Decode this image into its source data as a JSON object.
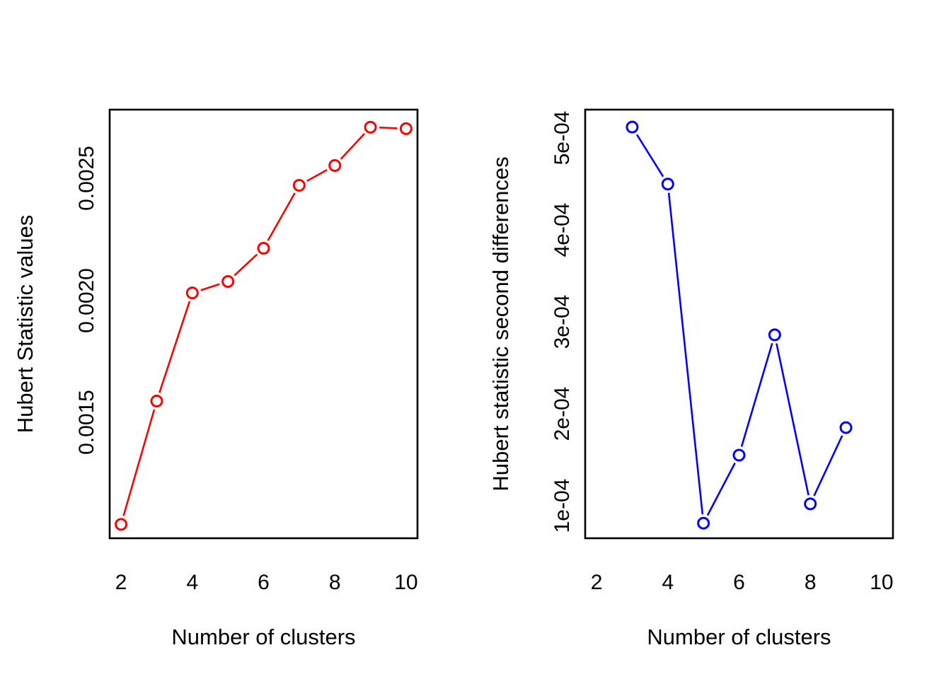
{
  "figure": {
    "background": "#ffffff",
    "text_color": "#000000"
  },
  "chart_data": [
    {
      "type": "line",
      "id": "hubert-statistic-values",
      "marker": "open-circle",
      "line_style": "segments-with-gaps",
      "color": "#ff0000",
      "xlabel": "Number of clusters",
      "ylabel": "Hubert Statistic values",
      "x": [
        2,
        3,
        4,
        5,
        6,
        7,
        8,
        9,
        10
      ],
      "y": [
        0.001082,
        0.001587,
        0.00203,
        0.002077,
        0.002213,
        0.002471,
        0.002552,
        0.002709,
        0.002703
      ],
      "xlim": [
        1.68,
        10.32
      ],
      "ylim": [
        0.001025,
        0.002781
      ],
      "xticks": [
        2,
        4,
        6,
        8,
        10
      ],
      "xtick_labels": [
        "2",
        "4",
        "6",
        "8",
        "10"
      ],
      "yticks": [
        0.0015,
        0.002,
        0.0025
      ],
      "ytick_labels": [
        "0.0015",
        "0.0020",
        "0.0025"
      ],
      "grid": false,
      "legend": null
    },
    {
      "type": "line",
      "id": "hubert-statistic-second-differences",
      "marker": "open-circle",
      "line_style": "segments-with-gaps",
      "color": "#0000ff",
      "xlabel": "Number of clusters",
      "ylabel": "Hubert statistic second differences",
      "x": [
        3,
        4,
        5,
        6,
        7,
        8,
        9
      ],
      "y": [
        0.000512,
        0.00045,
        8.1e-05,
        0.000155,
        0.000286,
        0.000102,
        0.000185
      ],
      "xlim": [
        1.68,
        10.32
      ],
      "ylim": [
        6.46e-05,
        0.000531
      ],
      "xticks": [
        2,
        4,
        6,
        8,
        10
      ],
      "xtick_labels": [
        "2",
        "4",
        "6",
        "8",
        "10"
      ],
      "yticks": [
        0.0001,
        0.0002,
        0.0003,
        0.0004,
        0.0005
      ],
      "ytick_labels": [
        "1e-04",
        "2e-04",
        "3e-04",
        "4e-04",
        "5e-04"
      ],
      "grid": false,
      "legend": null
    }
  ]
}
